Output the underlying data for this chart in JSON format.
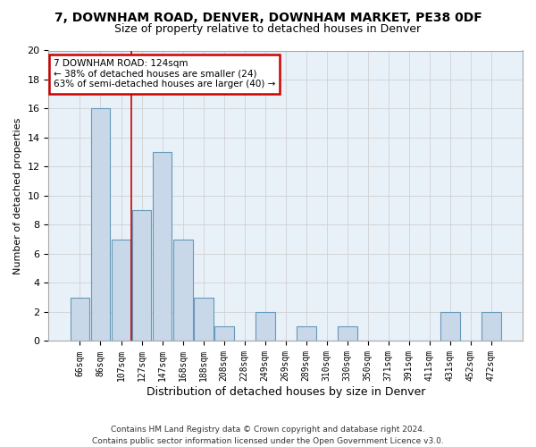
{
  "title": "7, DOWNHAM ROAD, DENVER, DOWNHAM MARKET, PE38 0DF",
  "subtitle": "Size of property relative to detached houses in Denver",
  "xlabel": "Distribution of detached houses by size in Denver",
  "ylabel": "Number of detached properties",
  "categories": [
    "66sqm",
    "86sqm",
    "107sqm",
    "127sqm",
    "147sqm",
    "168sqm",
    "188sqm",
    "208sqm",
    "228sqm",
    "249sqm",
    "269sqm",
    "289sqm",
    "310sqm",
    "330sqm",
    "350sqm",
    "371sqm",
    "391sqm",
    "411sqm",
    "431sqm",
    "452sqm",
    "472sqm"
  ],
  "values": [
    3,
    16,
    7,
    9,
    13,
    7,
    3,
    1,
    0,
    2,
    0,
    1,
    0,
    1,
    0,
    0,
    0,
    0,
    2,
    0,
    2
  ],
  "bar_color": "#c8d8e8",
  "bar_edge_color": "#6699bb",
  "red_line_x": 2.5,
  "annotation_line1": "7 DOWNHAM ROAD: 124sqm",
  "annotation_line2": "← 38% of detached houses are smaller (24)",
  "annotation_line3": "63% of semi-detached houses are larger (40) →",
  "annotation_box_color": "#ffffff",
  "annotation_box_edge": "#cc0000",
  "red_line_color": "#cc0000",
  "ylim": [
    0,
    20
  ],
  "yticks": [
    0,
    2,
    4,
    6,
    8,
    10,
    12,
    14,
    16,
    18,
    20
  ],
  "footer_line1": "Contains HM Land Registry data © Crown copyright and database right 2024.",
  "footer_line2": "Contains public sector information licensed under the Open Government Licence v3.0.",
  "background_color": "#ffffff",
  "plot_bg_color": "#e8f0f8",
  "grid_color": "#cccccc"
}
